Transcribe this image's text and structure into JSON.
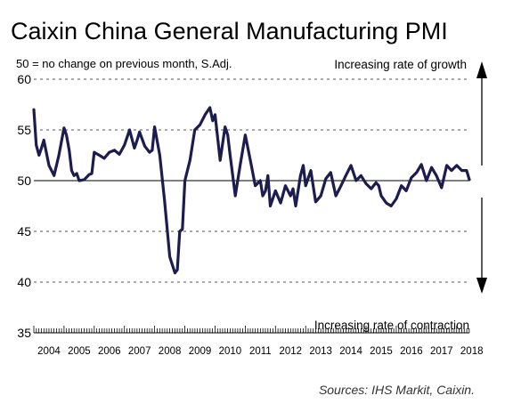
{
  "chart_data": {
    "type": "line",
    "title": "Caixin China General Manufacturing PMI",
    "subtitle": "50 = no change on previous month, S.Adj.",
    "source": "Sources: IHS Markit, Caixin.",
    "annotations": {
      "top": "Increasing rate of growth",
      "bottom": "Increasing rate of contraction"
    },
    "ylim": [
      35,
      60
    ],
    "yticks": [
      35,
      40,
      45,
      50,
      55,
      60
    ],
    "reference_line": 50,
    "grid": "dashed horizontal",
    "x_start": 2004.0,
    "x_end": 2018.42,
    "xticks": [
      "2004",
      "2005",
      "2006",
      "2007",
      "2008",
      "2009",
      "2010",
      "2011",
      "2012",
      "2013",
      "2014",
      "2015",
      "2016",
      "2017",
      "2018"
    ],
    "series": [
      {
        "name": "",
        "color": "#1c1c4e",
        "x": [
          2004.0,
          2004.08,
          2004.17,
          2004.25,
          2004.33,
          2004.5,
          2004.67,
          2004.83,
          2005.0,
          2005.08,
          2005.17,
          2005.25,
          2005.33,
          2005.42,
          2005.5,
          2005.67,
          2005.83,
          2005.92,
          2006.0,
          2006.17,
          2006.33,
          2006.5,
          2006.67,
          2006.83,
          2007.0,
          2007.17,
          2007.33,
          2007.42,
          2007.5,
          2007.67,
          2007.83,
          2007.92,
          2008.0,
          2008.17,
          2008.33,
          2008.5,
          2008.67,
          2008.75,
          2008.83,
          2008.92,
          2009.0,
          2009.17,
          2009.33,
          2009.5,
          2009.67,
          2009.83,
          2009.92,
          2010.0,
          2010.17,
          2010.33,
          2010.42,
          2010.5,
          2010.67,
          2010.83,
          2011.0,
          2011.17,
          2011.33,
          2011.5,
          2011.58,
          2011.67,
          2011.75,
          2011.83,
          2011.92,
          2012.0,
          2012.17,
          2012.33,
          2012.5,
          2012.58,
          2012.67,
          2012.83,
          2012.92,
          2013.0,
          2013.17,
          2013.33,
          2013.5,
          2013.67,
          2013.83,
          2014.0,
          2014.17,
          2014.33,
          2014.5,
          2014.67,
          2014.83,
          2015.0,
          2015.17,
          2015.33,
          2015.42,
          2015.5,
          2015.67,
          2015.83,
          2016.0,
          2016.17,
          2016.33,
          2016.5,
          2016.67,
          2016.83,
          2017.0,
          2017.17,
          2017.33,
          2017.5,
          2017.67,
          2017.83,
          2018.0,
          2018.17,
          2018.33,
          2018.42
        ],
        "values": [
          57.0,
          53.5,
          52.5,
          53.2,
          54.0,
          51.5,
          50.5,
          52.5,
          55.2,
          54.5,
          53.0,
          51.0,
          50.5,
          50.7,
          50.0,
          50.1,
          50.6,
          50.7,
          52.8,
          52.5,
          52.2,
          52.8,
          53.0,
          52.6,
          53.5,
          55.0,
          53.2,
          54.0,
          54.8,
          53.4,
          52.8,
          53.0,
          55.3,
          52.5,
          48.0,
          42.5,
          40.9,
          41.2,
          45.0,
          45.2,
          50.0,
          52.0,
          55.0,
          55.5,
          56.5,
          57.2,
          55.9,
          56.5,
          52.0,
          55.3,
          54.5,
          52.5,
          48.5,
          51.5,
          54.5,
          52.0,
          49.5,
          50.0,
          48.5,
          49.0,
          50.5,
          47.5,
          48.3,
          49.0,
          47.8,
          49.5,
          48.5,
          49.2,
          47.5,
          50.5,
          51.5,
          49.5,
          51.0,
          47.9,
          48.5,
          50.2,
          50.8,
          48.5,
          49.5,
          50.5,
          51.5,
          50.0,
          50.5,
          49.7,
          49.2,
          49.8,
          49.5,
          48.5,
          47.8,
          47.5,
          48.2,
          49.5,
          49.0,
          50.3,
          50.8,
          51.6,
          50.0,
          51.3,
          50.5,
          49.3,
          51.5,
          51.0,
          51.5,
          51.0,
          51.0,
          50.1
        ]
      }
    ]
  }
}
